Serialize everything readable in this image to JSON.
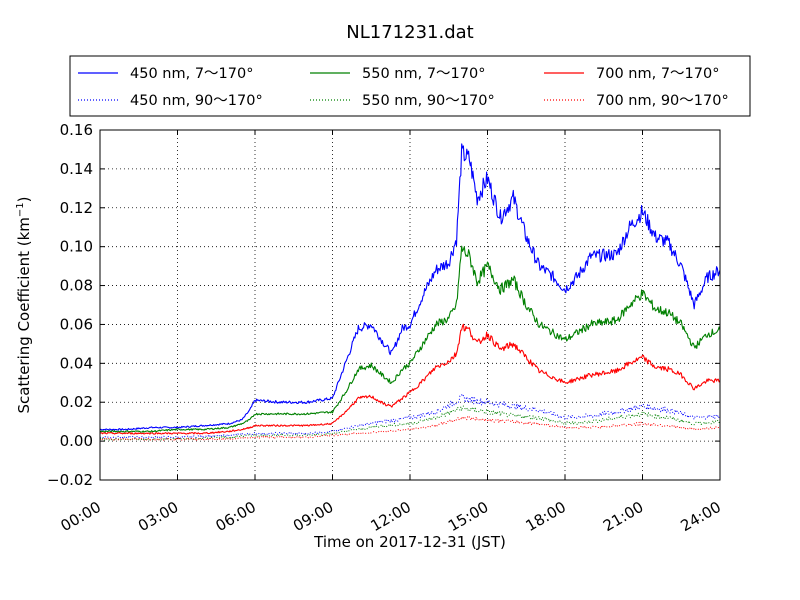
{
  "chart_data": {
    "type": "line",
    "title": "NL171231.dat",
    "xlabel": "Time on 2017-12-31 (JST)",
    "ylabel": "Scattering Coefficient (km",
    "ylabel_sup": "−1",
    "ylabel_end": ")",
    "xlim": [
      0,
      24
    ],
    "ylim": [
      -0.02,
      0.16
    ],
    "x_ticks": [
      0,
      3,
      6,
      9,
      12,
      15,
      18,
      21,
      24
    ],
    "x_tick_labels": [
      "00:00",
      "03:00",
      "06:00",
      "09:00",
      "12:00",
      "15:00",
      "18:00",
      "21:00",
      "24:00"
    ],
    "y_ticks": [
      -0.02,
      0.0,
      0.02,
      0.04,
      0.06,
      0.08,
      0.1,
      0.12,
      0.14,
      0.16
    ],
    "y_tick_labels": [
      "−0.02",
      "0.00",
      "0.02",
      "0.04",
      "0.06",
      "0.08",
      "0.10",
      "0.12",
      "0.14",
      "0.16"
    ],
    "grid": true,
    "legend_position": "top",
    "series": [
      {
        "name": "450 nm, 7～170°",
        "color": "#0000ff",
        "style": "solid",
        "x": [
          0,
          1,
          2,
          3,
          4,
          5,
          5.5,
          5.8,
          6,
          7,
          8,
          9,
          9.5,
          10,
          10.5,
          11,
          11.3,
          11.7,
          12,
          12.5,
          13,
          13.5,
          13.8,
          14,
          14.3,
          14.6,
          15,
          15.5,
          16,
          16.5,
          17,
          17.5,
          18,
          18.5,
          19,
          20,
          20.5,
          21,
          21.5,
          22,
          22.5,
          23,
          23.5,
          24
        ],
        "y": [
          0.006,
          0.006,
          0.007,
          0.007,
          0.008,
          0.009,
          0.011,
          0.016,
          0.021,
          0.02,
          0.02,
          0.022,
          0.04,
          0.058,
          0.06,
          0.05,
          0.045,
          0.058,
          0.06,
          0.075,
          0.088,
          0.092,
          0.104,
          0.148,
          0.145,
          0.125,
          0.135,
          0.115,
          0.125,
          0.105,
          0.09,
          0.085,
          0.078,
          0.085,
          0.095,
          0.096,
          0.11,
          0.118,
          0.105,
          0.102,
          0.09,
          0.07,
          0.084,
          0.088
        ]
      },
      {
        "name": "450 nm, 90～170°",
        "color": "#0000ff",
        "style": "dotted",
        "x": [
          0,
          3,
          5,
          6,
          7,
          8,
          9,
          10,
          11,
          12,
          13,
          14,
          15,
          16,
          17,
          18,
          19,
          20,
          21,
          22,
          23,
          24
        ],
        "y": [
          0.002,
          0.002,
          0.003,
          0.004,
          0.004,
          0.004,
          0.005,
          0.008,
          0.01,
          0.012,
          0.015,
          0.022,
          0.02,
          0.018,
          0.016,
          0.012,
          0.013,
          0.015,
          0.018,
          0.016,
          0.012,
          0.013
        ]
      },
      {
        "name": "550 nm, 7～170°",
        "color": "#008000",
        "style": "solid",
        "x": [
          0,
          1,
          2,
          3,
          4,
          5,
          5.5,
          5.8,
          6,
          7,
          8,
          9,
          9.5,
          10,
          10.5,
          11,
          11.3,
          11.7,
          12,
          12.5,
          13,
          13.5,
          13.8,
          14,
          14.3,
          14.6,
          15,
          15.5,
          16,
          16.5,
          17,
          17.5,
          18,
          18.5,
          19,
          20,
          20.5,
          21,
          21.5,
          22,
          22.5,
          23,
          23.5,
          24
        ],
        "y": [
          0.005,
          0.005,
          0.005,
          0.006,
          0.006,
          0.007,
          0.009,
          0.011,
          0.014,
          0.014,
          0.014,
          0.015,
          0.025,
          0.037,
          0.039,
          0.033,
          0.03,
          0.037,
          0.04,
          0.05,
          0.06,
          0.063,
          0.07,
          0.099,
          0.095,
          0.082,
          0.09,
          0.078,
          0.083,
          0.07,
          0.06,
          0.056,
          0.052,
          0.056,
          0.06,
          0.062,
          0.07,
          0.076,
          0.068,
          0.066,
          0.06,
          0.048,
          0.055,
          0.057
        ]
      },
      {
        "name": "550 nm, 90～170°",
        "color": "#008000",
        "style": "dotted",
        "x": [
          0,
          3,
          5,
          6,
          7,
          8,
          9,
          10,
          11,
          12,
          13,
          14,
          15,
          16,
          17,
          18,
          19,
          20,
          21,
          22,
          23,
          24
        ],
        "y": [
          0.001,
          0.001,
          0.002,
          0.003,
          0.003,
          0.003,
          0.004,
          0.006,
          0.008,
          0.009,
          0.012,
          0.017,
          0.015,
          0.013,
          0.012,
          0.009,
          0.01,
          0.012,
          0.014,
          0.012,
          0.009,
          0.01
        ]
      },
      {
        "name": "700 nm, 7～170°",
        "color": "#ff0000",
        "style": "solid",
        "x": [
          0,
          1,
          2,
          3,
          4,
          5,
          5.5,
          5.8,
          6,
          7,
          8,
          9,
          9.5,
          10,
          10.5,
          11,
          11.3,
          11.7,
          12,
          12.5,
          13,
          13.5,
          13.8,
          14,
          14.3,
          14.6,
          15,
          15.5,
          16,
          16.5,
          17,
          17.5,
          18,
          18.5,
          19,
          20,
          20.5,
          21,
          21.5,
          22,
          22.5,
          23,
          23.5,
          24
        ],
        "y": [
          0.004,
          0.004,
          0.004,
          0.004,
          0.004,
          0.005,
          0.006,
          0.007,
          0.008,
          0.008,
          0.008,
          0.009,
          0.015,
          0.022,
          0.023,
          0.019,
          0.018,
          0.022,
          0.025,
          0.031,
          0.038,
          0.041,
          0.045,
          0.059,
          0.057,
          0.05,
          0.055,
          0.047,
          0.05,
          0.043,
          0.036,
          0.033,
          0.03,
          0.032,
          0.034,
          0.036,
          0.04,
          0.043,
          0.038,
          0.037,
          0.034,
          0.027,
          0.031,
          0.031
        ]
      },
      {
        "name": "700 nm, 90～170°",
        "color": "#ff0000",
        "style": "dotted",
        "x": [
          0,
          3,
          5,
          6,
          7,
          8,
          9,
          10,
          11,
          12,
          13,
          14,
          15,
          16,
          17,
          18,
          19,
          20,
          21,
          22,
          23,
          24
        ],
        "y": [
          0.001,
          0.001,
          0.001,
          0.002,
          0.002,
          0.002,
          0.003,
          0.004,
          0.005,
          0.006,
          0.008,
          0.012,
          0.011,
          0.01,
          0.009,
          0.007,
          0.007,
          0.008,
          0.009,
          0.008,
          0.006,
          0.007
        ]
      }
    ]
  }
}
